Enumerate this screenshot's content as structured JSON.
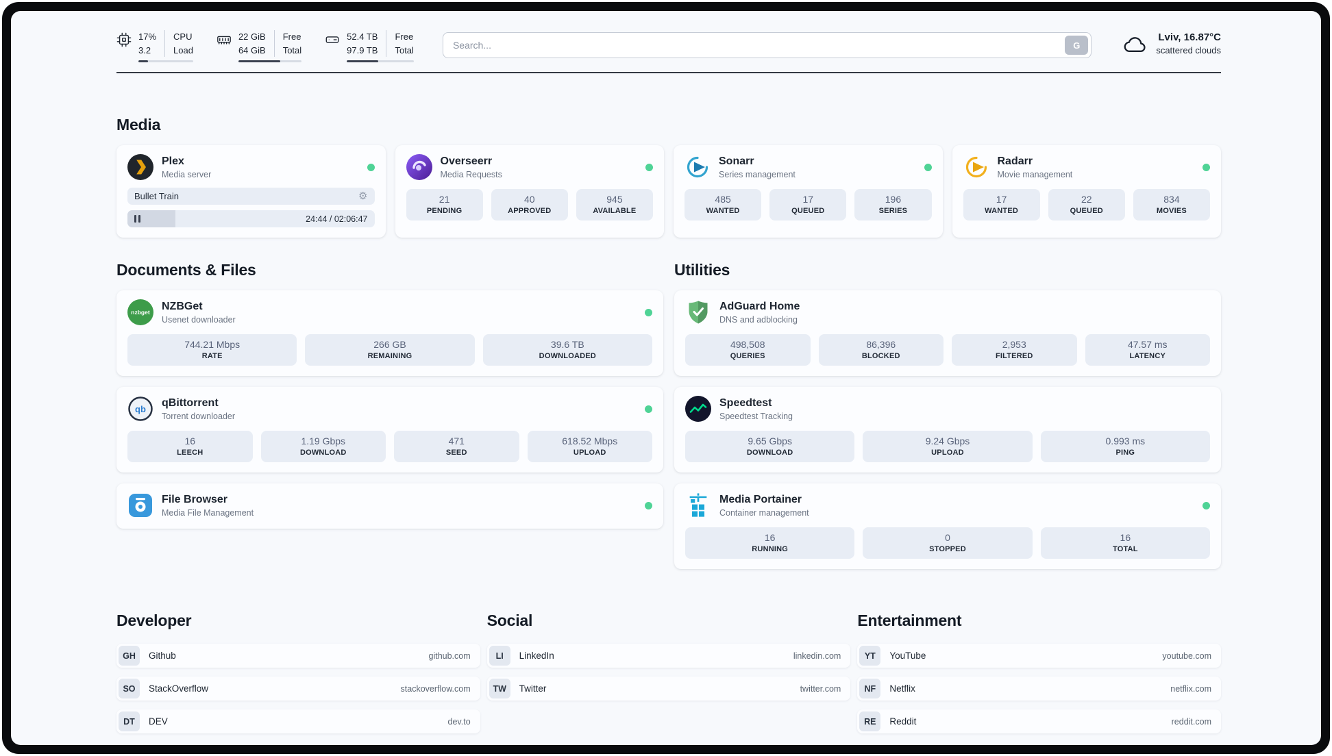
{
  "colors": {
    "status_online": "#4fd396",
    "page_bg": "#f7f9fc",
    "stat_box_bg": "#e8edf5",
    "frame": "#0a0b0d",
    "plex_brand": "#e5a00d",
    "overseerr_brand": "#6d28d9",
    "sonarr_brand": "#33a4cf",
    "radarr_brand": "#f2b01e",
    "adguard_brand": "#68b978",
    "speedtest_accent": "#00d98b",
    "filebrowser_brand": "#3898dc",
    "portainer_brand": "#1ba8d8"
  },
  "icons": {
    "cpu": "chip",
    "ram": "memory-module",
    "disk": "hard-drive",
    "weather": "cloud",
    "player_settings": "⚙",
    "player_state": "pause"
  },
  "topbar": {
    "metrics": [
      {
        "id": "cpu",
        "val1": "17%",
        "lab1": "CPU",
        "val2": "3.2",
        "lab2": "Load",
        "percent": 17
      },
      {
        "id": "ram",
        "val1": "22 GiB",
        "lab1": "Free",
        "val2": "64 GiB",
        "lab2": "Total",
        "percent": 66
      },
      {
        "id": "disk",
        "val1": "52.4 TB",
        "lab1": "Free",
        "val2": "97.9 TB",
        "lab2": "Total",
        "percent": 47
      }
    ],
    "search": {
      "placeholder": "Search...",
      "engine_button": "G"
    },
    "weather": {
      "location": "Lviv, 16.87°C",
      "condition": "scattered clouds"
    }
  },
  "sections": {
    "media": "Media",
    "documents": "Documents & Files",
    "utilities": "Utilities",
    "developer": "Developer",
    "social": "Social",
    "entertainment": "Entertainment"
  },
  "apps": {
    "plex": {
      "title": "Plex",
      "subtitle": "Media server",
      "online": true,
      "player": {
        "track": "Bullet Train",
        "time": "24:44 / 02:06:47",
        "progress_percent": 19.5
      }
    },
    "overseerr": {
      "title": "Overseerr",
      "subtitle": "Media Requests",
      "online": true,
      "stats": [
        {
          "value": "21",
          "label": "PENDING"
        },
        {
          "value": "40",
          "label": "APPROVED"
        },
        {
          "value": "945",
          "label": "AVAILABLE"
        }
      ]
    },
    "sonarr": {
      "title": "Sonarr",
      "subtitle": "Series management",
      "online": true,
      "stats": [
        {
          "value": "485",
          "label": "WANTED"
        },
        {
          "value": "17",
          "label": "QUEUED"
        },
        {
          "value": "196",
          "label": "SERIES"
        }
      ]
    },
    "radarr": {
      "title": "Radarr",
      "subtitle": "Movie management",
      "online": true,
      "stats": [
        {
          "value": "17",
          "label": "WANTED"
        },
        {
          "value": "22",
          "label": "QUEUED"
        },
        {
          "value": "834",
          "label": "MOVIES"
        }
      ]
    },
    "nzbget": {
      "title": "NZBGet",
      "subtitle": "Usenet downloader",
      "online": true,
      "stats": [
        {
          "value": "744.21 Mbps",
          "label": "RATE"
        },
        {
          "value": "266 GB",
          "label": "REMAINING"
        },
        {
          "value": "39.6 TB",
          "label": "DOWNLOADED"
        }
      ]
    },
    "qbittorrent": {
      "title": "qBittorrent",
      "subtitle": "Torrent downloader",
      "online": true,
      "stats": [
        {
          "value": "16",
          "label": "LEECH"
        },
        {
          "value": "1.19 Gbps",
          "label": "DOWNLOAD"
        },
        {
          "value": "471",
          "label": "SEED"
        },
        {
          "value": "618.52 Mbps",
          "label": "UPLOAD"
        }
      ]
    },
    "filebrowser": {
      "title": "File Browser",
      "subtitle": "Media File Management",
      "online": true
    },
    "adguard": {
      "title": "AdGuard Home",
      "subtitle": "DNS and adblocking",
      "online": false,
      "stats": [
        {
          "value": "498,508",
          "label": "QUERIES"
        },
        {
          "value": "86,396",
          "label": "BLOCKED"
        },
        {
          "value": "2,953",
          "label": "FILTERED"
        },
        {
          "value": "47.57 ms",
          "label": "LATENCY"
        }
      ]
    },
    "speedtest": {
      "title": "Speedtest",
      "subtitle": "Speedtest Tracking",
      "online": false,
      "stats": [
        {
          "value": "9.65 Gbps",
          "label": "DOWNLOAD"
        },
        {
          "value": "9.24 Gbps",
          "label": "UPLOAD"
        },
        {
          "value": "0.993 ms",
          "label": "PING"
        }
      ]
    },
    "portainer": {
      "title": "Media Portainer",
      "subtitle": "Container management",
      "online": true,
      "stats": [
        {
          "value": "16",
          "label": "RUNNING"
        },
        {
          "value": "0",
          "label": "STOPPED"
        },
        {
          "value": "16",
          "label": "TOTAL"
        }
      ]
    }
  },
  "links": {
    "developer": [
      {
        "badge": "GH",
        "name": "Github",
        "url": "github.com"
      },
      {
        "badge": "SO",
        "name": "StackOverflow",
        "url": "stackoverflow.com"
      },
      {
        "badge": "DT",
        "name": "DEV",
        "url": "dev.to"
      }
    ],
    "social": [
      {
        "badge": "LI",
        "name": "LinkedIn",
        "url": "linkedin.com"
      },
      {
        "badge": "TW",
        "name": "Twitter",
        "url": "twitter.com"
      }
    ],
    "entertainment": [
      {
        "badge": "YT",
        "name": "YouTube",
        "url": "youtube.com"
      },
      {
        "badge": "NF",
        "name": "Netflix",
        "url": "netflix.com"
      },
      {
        "badge": "RE",
        "name": "Reddit",
        "url": "reddit.com"
      }
    ]
  }
}
